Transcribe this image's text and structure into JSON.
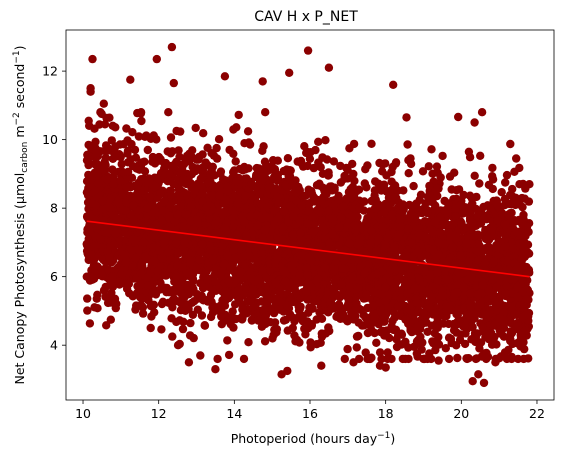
{
  "chart_data": {
    "type": "scatter",
    "title": "CAV H x P_NET",
    "xlabel": "Photoperiod (hours day",
    "xlabel_sup": "−1",
    "xlabel_end": ")",
    "ylabel": "Net Canopy Photosynthesis (μmol",
    "ylabel_sub": "carbon",
    "ylabel_mid": " m",
    "ylabel_sup1": "−2",
    "ylabel_mid2": " second",
    "ylabel_sup2": "−1",
    "ylabel_end": ")",
    "xlim": [
      9.55,
      22.45
    ],
    "ylim": [
      2.4,
      13.2
    ],
    "x_ticks": [
      10,
      12,
      14,
      16,
      18,
      20,
      22
    ],
    "y_ticks": [
      4,
      6,
      8,
      10,
      12
    ],
    "point_color": "#8b0000",
    "trend_color": "#ff0000",
    "trend_line": {
      "x": [
        10.1,
        21.8
      ],
      "y": [
        7.62,
        6.0
      ]
    },
    "cloud": {
      "x_range": [
        10.1,
        21.8
      ],
      "point_count_estimate": 6000
    },
    "outliers": [
      {
        "x": 10.25,
        "y": 12.35
      },
      {
        "x": 10.2,
        "y": 11.4
      },
      {
        "x": 10.2,
        "y": 11.5
      },
      {
        "x": 10.15,
        "y": 10.55
      },
      {
        "x": 10.55,
        "y": 11.05
      },
      {
        "x": 11.25,
        "y": 11.75
      },
      {
        "x": 11.95,
        "y": 12.35
      },
      {
        "x": 12.35,
        "y": 12.7
      },
      {
        "x": 12.4,
        "y": 11.65
      },
      {
        "x": 13.75,
        "y": 11.85
      },
      {
        "x": 14.75,
        "y": 11.7
      },
      {
        "x": 15.45,
        "y": 11.95
      },
      {
        "x": 15.95,
        "y": 12.6
      },
      {
        "x": 16.5,
        "y": 12.1
      },
      {
        "x": 18.2,
        "y": 11.6
      },
      {
        "x": 18.55,
        "y": 10.65
      },
      {
        "x": 20.35,
        "y": 10.5
      },
      {
        "x": 21.45,
        "y": 9.45
      },
      {
        "x": 21.8,
        "y": 8.7
      },
      {
        "x": 10.1,
        "y": 6.95
      },
      {
        "x": 10.1,
        "y": 6.0
      },
      {
        "x": 13.5,
        "y": 3.3
      },
      {
        "x": 15.25,
        "y": 3.15
      },
      {
        "x": 15.4,
        "y": 3.25
      },
      {
        "x": 16.3,
        "y": 3.4
      },
      {
        "x": 17.15,
        "y": 3.5
      },
      {
        "x": 18.0,
        "y": 3.35
      },
      {
        "x": 20.3,
        "y": 2.95
      },
      {
        "x": 20.6,
        "y": 2.9
      },
      {
        "x": 20.9,
        "y": 3.5
      },
      {
        "x": 21.65,
        "y": 3.6
      },
      {
        "x": 20.45,
        "y": 3.15
      },
      {
        "x": 12.8,
        "y": 3.5
      },
      {
        "x": 17.85,
        "y": 3.4
      },
      {
        "x": 13.1,
        "y": 3.7
      },
      {
        "x": 19.4,
        "y": 3.55
      }
    ]
  }
}
